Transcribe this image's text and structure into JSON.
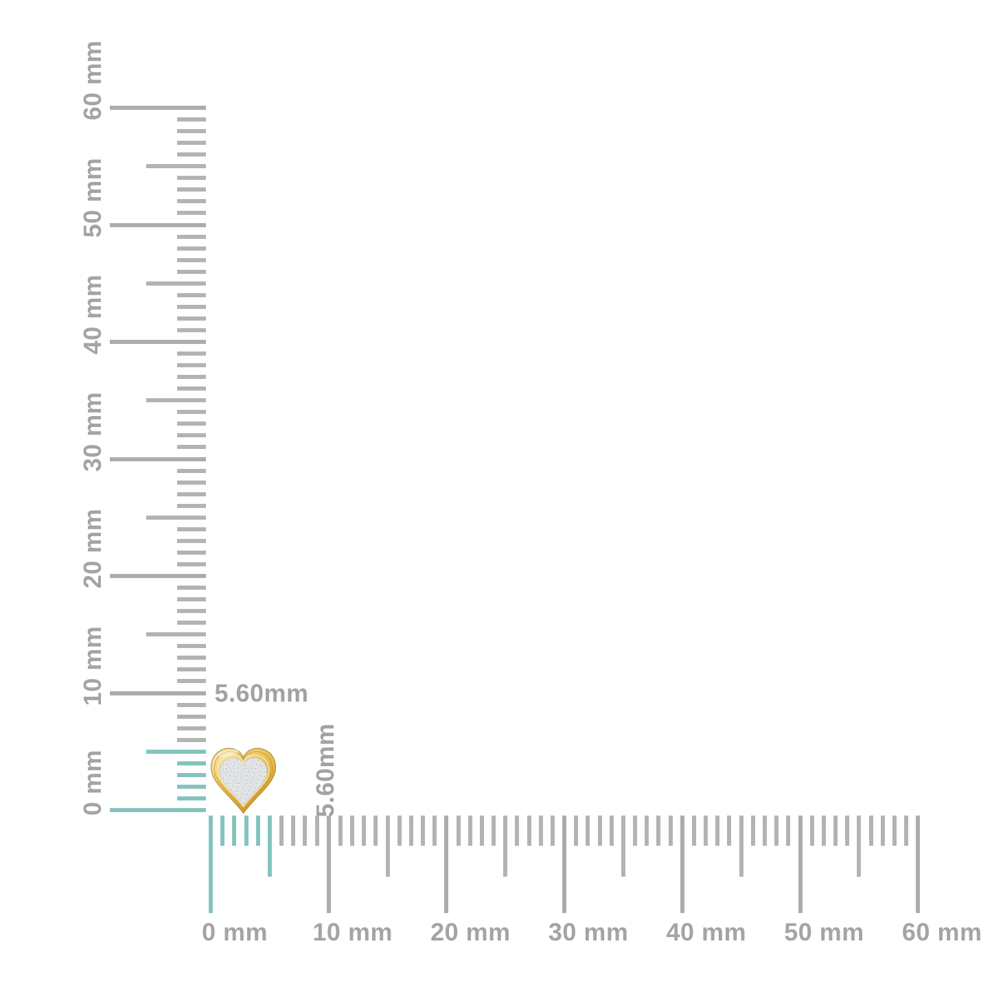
{
  "page": {
    "description": "Size reference diagram of a gold heart pendant with pave diamonds against millimeter rulers",
    "background": "#ffffff"
  },
  "product": {
    "name": "gold heart pendant with diamond pave",
    "width_label": "5.60mm",
    "height_label": "5.60mm"
  },
  "vertical_ruler": {
    "unit": "mm",
    "min_mm": 0,
    "max_mm": 60,
    "labels": [
      "0 mm",
      "10 mm",
      "20 mm",
      "30 mm",
      "40 mm",
      "50 mm",
      "60 mm"
    ],
    "highlight_mm": 5.6
  },
  "horizontal_ruler": {
    "unit": "mm",
    "min_mm": 0,
    "max_mm": 60,
    "labels": [
      "0 mm",
      "10 mm",
      "20 mm",
      "30 mm",
      "40 mm",
      "50 mm",
      "60 mm"
    ],
    "highlight_mm": 5.6
  },
  "colors": {
    "background": "#ffffff",
    "tick_gray": "#b3b3b3",
    "tick_major_gray": "#acacac",
    "label_gray": "#a4a4a4",
    "highlight_teal": "#85c3bd",
    "gold_light": "#f9efc6",
    "gold_mid": "#e7bd50",
    "gold_dark": "#c18d1e",
    "pave_white": "#eef0f1"
  }
}
